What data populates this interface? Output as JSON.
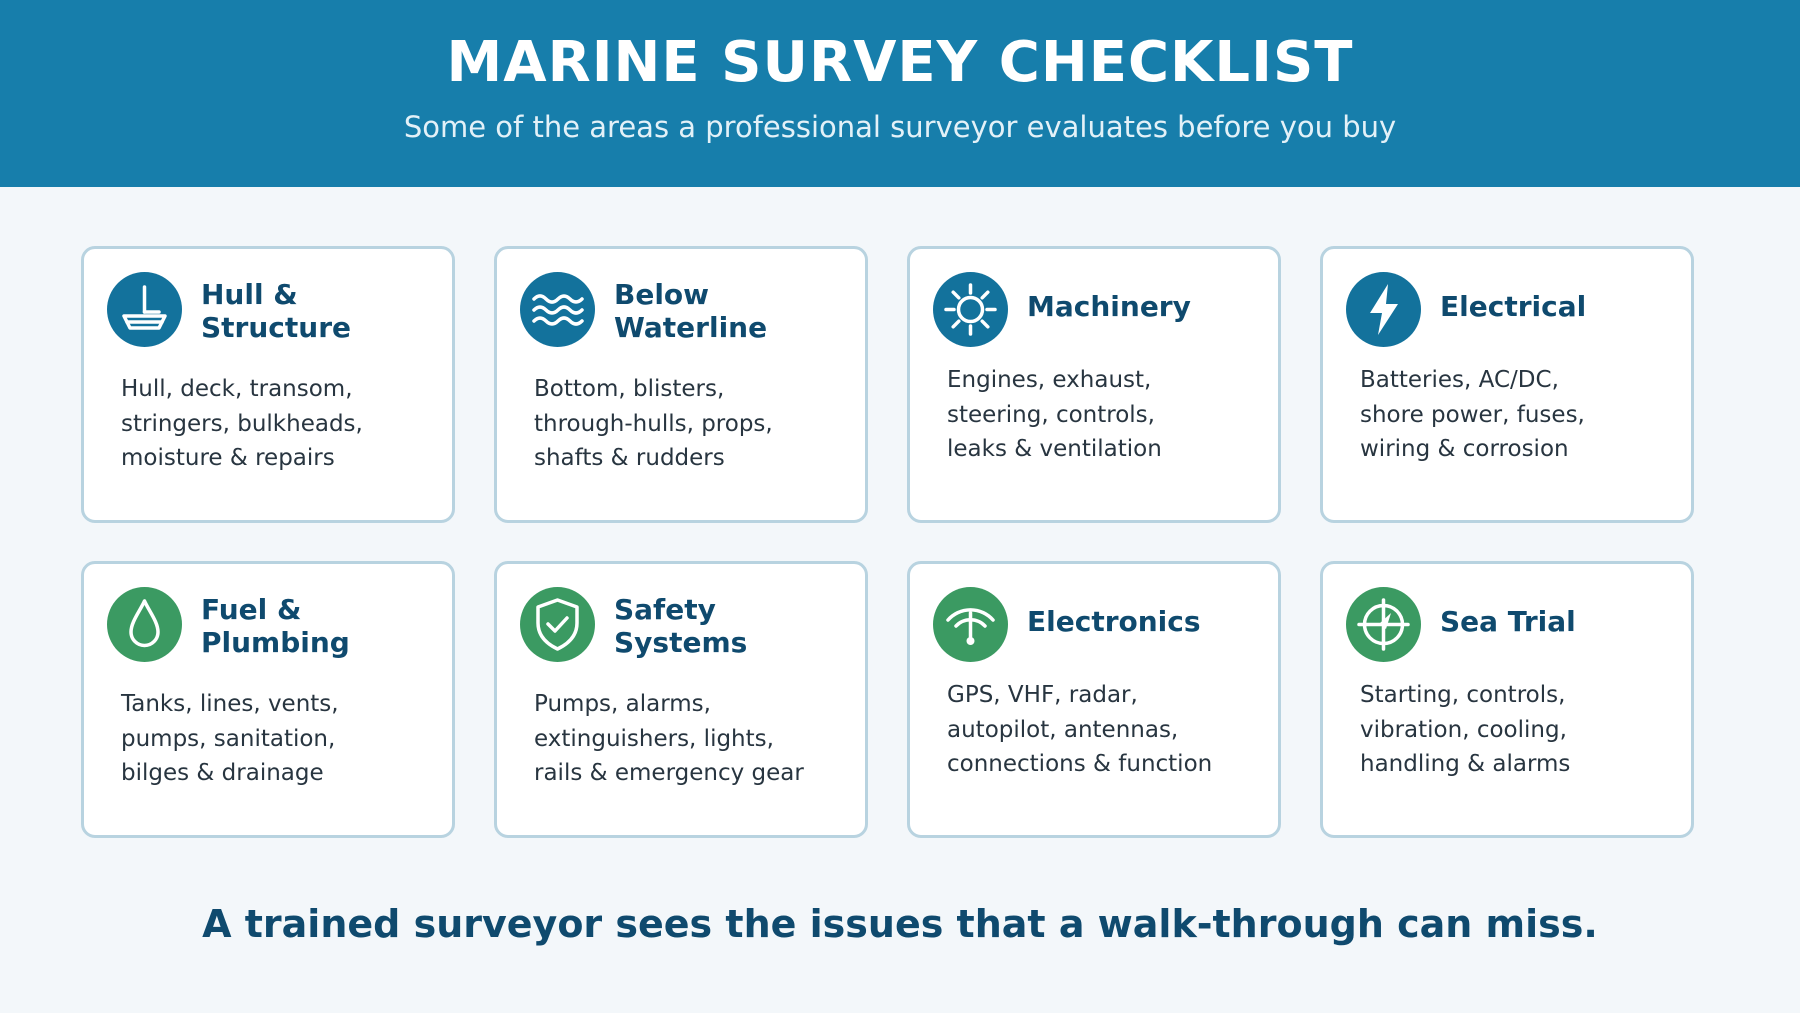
{
  "header": {
    "title": "MARINE SURVEY CHECKLIST",
    "subtitle": "Some of the areas a professional surveyor evaluates before you buy"
  },
  "cards": [
    {
      "icon": "boat-icon",
      "icon_color": "#13729c",
      "title_lines": [
        "Hull &",
        "Structure"
      ],
      "desc_lines": [
        "Hull, deck, transom,",
        "stringers, bulkheads,",
        "moisture & repairs"
      ]
    },
    {
      "icon": "waves-icon",
      "icon_color": "#13729c",
      "title_lines": [
        "Below",
        "Waterline"
      ],
      "desc_lines": [
        "Bottom, blisters,",
        "through-hulls, props,",
        "shafts & rudders"
      ]
    },
    {
      "icon": "gear-icon",
      "icon_color": "#13729c",
      "title_lines": [
        "Machinery"
      ],
      "desc_lines": [
        "Engines, exhaust,",
        "steering, controls,",
        "leaks & ventilation"
      ]
    },
    {
      "icon": "lightning-icon",
      "icon_color": "#13729c",
      "title_lines": [
        "Electrical"
      ],
      "desc_lines": [
        "Batteries, AC/DC,",
        "shore power, fuses,",
        "wiring & corrosion"
      ]
    },
    {
      "icon": "droplet-icon",
      "icon_color": "#3b9a62",
      "title_lines": [
        "Fuel &",
        "Plumbing"
      ],
      "desc_lines": [
        "Tanks, lines, vents,",
        "pumps, sanitation,",
        "bilges & drainage"
      ]
    },
    {
      "icon": "shield-check-icon",
      "icon_color": "#3b9a62",
      "title_lines": [
        "Safety",
        "Systems"
      ],
      "desc_lines": [
        "Pumps, alarms,",
        "extinguishers, lights,",
        "rails & emergency gear"
      ]
    },
    {
      "icon": "antenna-icon",
      "icon_color": "#3b9a62",
      "title_lines": [
        "Electronics"
      ],
      "desc_lines": [
        "GPS, VHF, radar,",
        "autopilot, antennas,",
        "connections & function"
      ]
    },
    {
      "icon": "compass-icon",
      "icon_color": "#3b9a62",
      "title_lines": [
        "Sea Trial"
      ],
      "desc_lines": [
        "Starting, controls,",
        "vibration, cooling,",
        "handling & alarms"
      ]
    }
  ],
  "footer": {
    "text": "A trained surveyor sees the issues that a walk-through can miss."
  },
  "colors": {
    "header_bg": "#177eab",
    "card_border": "#b8d3e0",
    "title_text": "#0f4a6e",
    "icon_blue": "#13729c",
    "icon_green": "#3b9a62"
  }
}
